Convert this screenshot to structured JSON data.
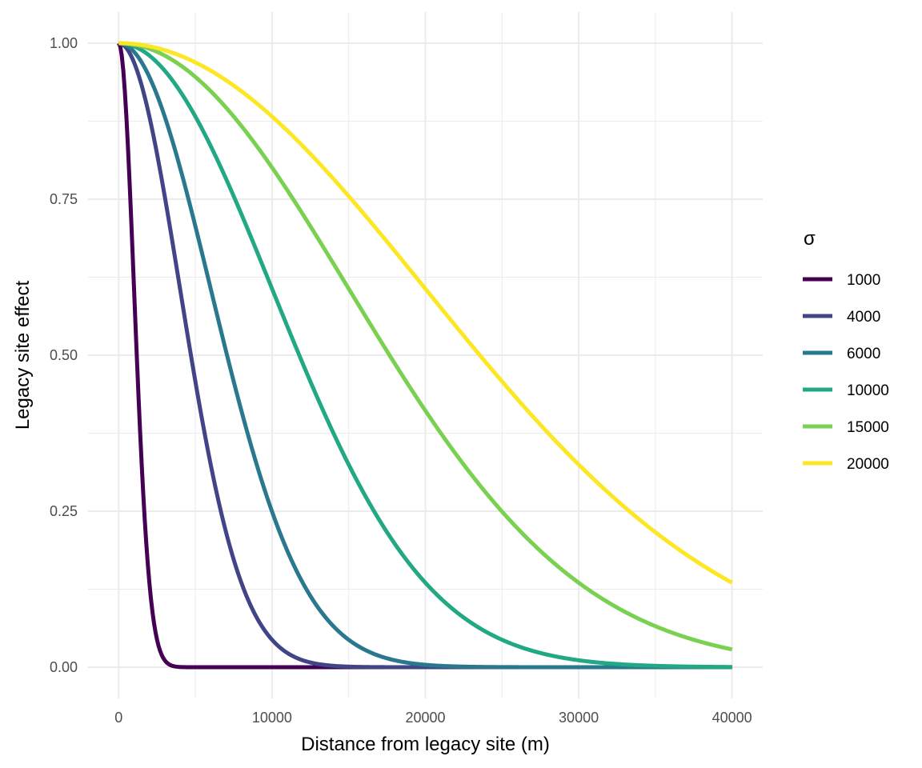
{
  "chart_data": {
    "type": "line",
    "title": "",
    "xlabel": "Distance from legacy site (m)",
    "ylabel": "Legacy site effect",
    "xlim": [
      -2000,
      42000
    ],
    "ylim": [
      -0.05,
      1.05
    ],
    "x_ticks": [
      0,
      10000,
      20000,
      30000,
      40000
    ],
    "x_tick_labels": [
      "0",
      "10000",
      "20000",
      "30000",
      "40000"
    ],
    "y_ticks": [
      0,
      0.25,
      0.5,
      0.75,
      1.0
    ],
    "y_tick_labels": [
      "0.00",
      "0.25",
      "0.50",
      "0.75",
      "1.00"
    ],
    "x_domain": [
      0,
      40000
    ],
    "grid": true,
    "legend": {
      "title": "σ",
      "placement": "right"
    },
    "series": [
      {
        "name": "1000",
        "sigma": 1000,
        "color": "#440154",
        "x": [
          0,
          250,
          500,
          750,
          1000,
          1250,
          1500,
          1750,
          2000,
          2250,
          2500,
          3000,
          4000,
          10000,
          40000
        ],
        "y": [
          1.0,
          0.969,
          0.882,
          0.755,
          0.607,
          0.458,
          0.325,
          0.216,
          0.135,
          0.08,
          0.044,
          0.011,
          0.0003,
          0,
          0
        ]
      },
      {
        "name": "4000",
        "sigma": 4000,
        "color": "#414487",
        "x": [
          0,
          1000,
          2000,
          3000,
          4000,
          5000,
          6000,
          7000,
          8000,
          9000,
          10000,
          12000,
          14000,
          20000,
          40000
        ],
        "y": [
          1.0,
          0.969,
          0.882,
          0.755,
          0.607,
          0.458,
          0.325,
          0.216,
          0.135,
          0.08,
          0.044,
          0.011,
          0.002,
          0,
          0
        ]
      },
      {
        "name": "6000",
        "sigma": 6000,
        "color": "#2A788E",
        "x": [
          0,
          1500,
          3000,
          4500,
          6000,
          7500,
          9000,
          10500,
          12000,
          13500,
          15000,
          18000,
          21000,
          30000,
          40000
        ],
        "y": [
          1.0,
          0.969,
          0.882,
          0.755,
          0.607,
          0.458,
          0.325,
          0.216,
          0.135,
          0.08,
          0.044,
          0.011,
          0.002,
          0,
          0
        ]
      },
      {
        "name": "10000",
        "sigma": 10000,
        "color": "#22A884",
        "x": [
          0,
          2500,
          5000,
          7500,
          10000,
          12500,
          15000,
          17500,
          20000,
          22500,
          25000,
          30000,
          35000,
          40000
        ],
        "y": [
          1.0,
          0.969,
          0.882,
          0.755,
          0.607,
          0.458,
          0.325,
          0.216,
          0.135,
          0.08,
          0.044,
          0.011,
          0.002,
          0.0003
        ]
      },
      {
        "name": "15000",
        "sigma": 15000,
        "color": "#7AD151",
        "x": [
          0,
          3750,
          7500,
          11250,
          15000,
          18750,
          22500,
          26250,
          30000,
          33750,
          37500,
          40000
        ],
        "y": [
          1.0,
          0.969,
          0.882,
          0.755,
          0.607,
          0.458,
          0.325,
          0.216,
          0.135,
          0.08,
          0.044,
          0.028
        ]
      },
      {
        "name": "20000",
        "sigma": 20000,
        "color": "#FDE725",
        "x": [
          0,
          5000,
          10000,
          15000,
          20000,
          25000,
          30000,
          35000,
          40000
        ],
        "y": [
          1.0,
          0.969,
          0.882,
          0.755,
          0.607,
          0.458,
          0.325,
          0.216,
          0.135
        ]
      }
    ]
  }
}
